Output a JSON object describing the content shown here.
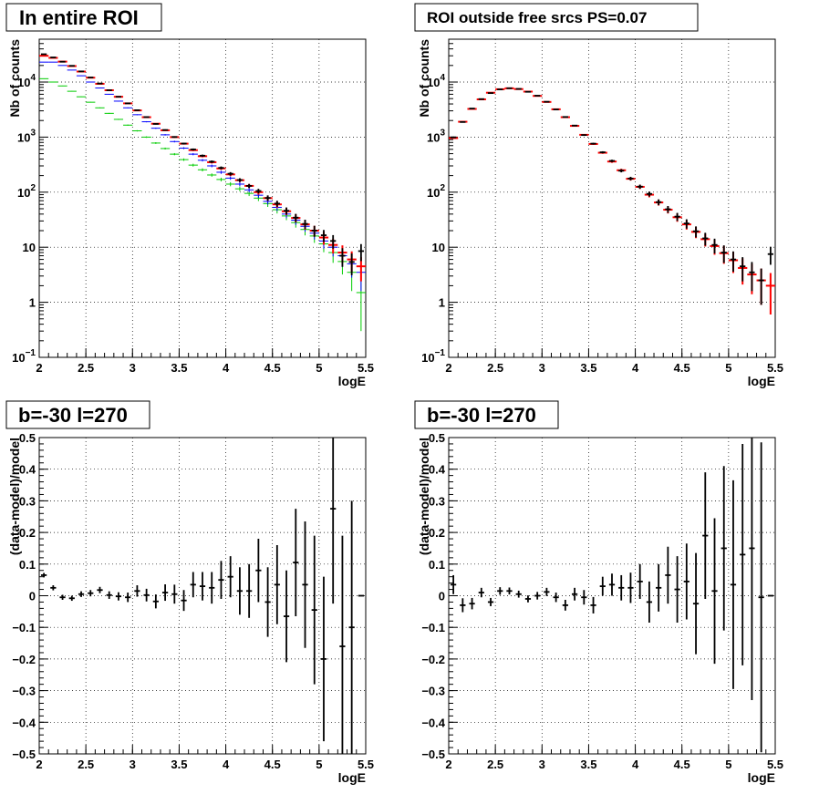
{
  "colors": {
    "data": "#000000",
    "total": "#ff0000",
    "blue": "#0000ff",
    "green": "#00cc00",
    "grid": "#000000"
  },
  "chart_data": [
    {
      "type": "scatter",
      "title": "In entire ROI",
      "xlabel": "logE",
      "ylabel": "Nb of counts",
      "xlim": [
        2,
        5.5
      ],
      "ylim": [
        0.1,
        60000
      ],
      "yscale": "log",
      "grid": true,
      "x_ticks": [
        "2",
        "2.5",
        "3",
        "3.5",
        "4",
        "4.5",
        "5",
        "5.5"
      ],
      "y_ticks": [
        {
          "v": 0.1,
          "base": "10",
          "exp": "−1"
        },
        {
          "v": 1,
          "base": "1",
          "exp": ""
        },
        {
          "v": 10,
          "base": "10",
          "exp": ""
        },
        {
          "v": 100,
          "base": "10",
          "exp": "2"
        },
        {
          "v": 1000,
          "base": "10",
          "exp": "3"
        },
        {
          "v": 10000,
          "base": "10",
          "exp": "4"
        }
      ],
      "x": [
        2.05,
        2.15,
        2.25,
        2.35,
        2.45,
        2.55,
        2.65,
        2.75,
        2.85,
        2.95,
        3.05,
        3.15,
        3.25,
        3.35,
        3.45,
        3.55,
        3.65,
        3.75,
        3.85,
        3.95,
        4.05,
        4.15,
        4.25,
        4.35,
        4.45,
        4.55,
        4.65,
        4.75,
        4.85,
        4.95,
        5.05,
        5.15,
        5.25,
        5.35,
        5.45
      ],
      "series": [
        {
          "color_key": "green",
          "style": "hist",
          "values": [
            11500,
            10000,
            8500,
            6800,
            5400,
            4300,
            3400,
            2700,
            2100,
            1650,
            1300,
            1000,
            780,
            620,
            490,
            390,
            310,
            255,
            205,
            170,
            140,
            115,
            95,
            78,
            62,
            48,
            37,
            28,
            21,
            16,
            11.5,
            8,
            5.5,
            3.5,
            1.5
          ],
          "errors": [
            107,
            100,
            92,
            82,
            73,
            66,
            58,
            52,
            46,
            41,
            36,
            32,
            28,
            25,
            22,
            20,
            18,
            16,
            14,
            13,
            12,
            11,
            10,
            9,
            8,
            7,
            6,
            5.3,
            4.6,
            4,
            3.4,
            2.8,
            2.3,
            1.9,
            1.2
          ]
        },
        {
          "color_key": "blue",
          "style": "hist",
          "values": [
            23000,
            23000,
            20000,
            16500,
            13000,
            10000,
            7800,
            6000,
            4500,
            3400,
            2550,
            1900,
            1450,
            1100,
            830,
            630,
            490,
            380,
            300,
            230,
            180,
            140,
            110,
            88,
            68,
            53,
            40,
            31,
            24,
            18,
            13,
            10,
            7,
            5,
            3.5
          ],
          "errors": [
            150,
            150,
            141,
            128,
            114,
            100,
            88,
            77,
            67,
            58,
            50,
            44,
            38,
            33,
            29,
            25,
            22,
            19,
            17,
            15,
            13,
            12,
            10.5,
            9.4,
            8.2,
            7.3,
            6.3,
            5.6,
            4.9,
            4.2,
            3.6,
            3.2,
            2.6,
            2.2,
            1.9
          ]
        },
        {
          "color_key": "total",
          "style": "hist",
          "values": [
            30000,
            27500,
            23500,
            19500,
            15500,
            12000,
            9300,
            7100,
            5400,
            4100,
            3050,
            2300,
            1750,
            1330,
            1000,
            760,
            580,
            450,
            350,
            270,
            210,
            165,
            130,
            100,
            78,
            60,
            45,
            34,
            26,
            20,
            15,
            11,
            8,
            6,
            4.5
          ],
          "errors": [
            170,
            166,
            153,
            140,
            124,
            110,
            96,
            84,
            73,
            64,
            55,
            48,
            42,
            36,
            32,
            28,
            24,
            21,
            19,
            16,
            14,
            13,
            11,
            10,
            8.8,
            7.7,
            6.7,
            5.8,
            5.1,
            4.5,
            3.9,
            3.3,
            2.8,
            2.4,
            2.1
          ]
        },
        {
          "color_key": "data",
          "style": "points",
          "values": [
            32000,
            28000,
            23400,
            19700,
            15600,
            12100,
            9400,
            7100,
            5400,
            4100,
            3080,
            2310,
            1735,
            1345,
            1005,
            763,
            597,
            460,
            358,
            276,
            216,
            166,
            130,
            105,
            78.5,
            62,
            46,
            34.5,
            26.5,
            20,
            16.5,
            13,
            7,
            5.4,
            8.5
          ],
          "errors": [
            179,
            167,
            153,
            140,
            125,
            110,
            97,
            84,
            73,
            64,
            55,
            48,
            42,
            37,
            32,
            28,
            24,
            21,
            19,
            17,
            15,
            13,
            11,
            10,
            8.9,
            7.9,
            6.8,
            5.9,
            5.1,
            4.5,
            4.1,
            3.6,
            2.6,
            2.3,
            2.9
          ]
        }
      ]
    },
    {
      "type": "scatter",
      "title": "ROI outside free srcs PS=0.07",
      "xlabel": "logE",
      "ylabel": "Nb of counts",
      "xlim": [
        2,
        5.5
      ],
      "ylim": [
        0.1,
        60000
      ],
      "yscale": "log",
      "grid": true,
      "x_ticks": [
        "2",
        "2.5",
        "3",
        "3.5",
        "4",
        "4.5",
        "5",
        "5.5"
      ],
      "y_ticks": [
        {
          "v": 0.1,
          "base": "10",
          "exp": "−1"
        },
        {
          "v": 1,
          "base": "1",
          "exp": ""
        },
        {
          "v": 10,
          "base": "10",
          "exp": ""
        },
        {
          "v": 100,
          "base": "10",
          "exp": "2"
        },
        {
          "v": 1000,
          "base": "10",
          "exp": "3"
        },
        {
          "v": 10000,
          "base": "10",
          "exp": "4"
        }
      ],
      "x": [
        2.05,
        2.15,
        2.25,
        2.35,
        2.45,
        2.55,
        2.65,
        2.75,
        2.85,
        2.95,
        3.05,
        3.15,
        3.25,
        3.35,
        3.45,
        3.55,
        3.65,
        3.75,
        3.85,
        3.95,
        4.05,
        4.15,
        4.25,
        4.35,
        4.45,
        4.55,
        4.65,
        4.75,
        4.85,
        4.95,
        5.05,
        5.15,
        5.25,
        5.35,
        5.45
      ],
      "series": [
        {
          "color_key": "total",
          "style": "hist",
          "values": [
            960,
            1900,
            3250,
            4850,
            6400,
            7400,
            7700,
            7450,
            6700,
            5600,
            4350,
            3200,
            2300,
            1600,
            1100,
            750,
            520,
            360,
            250,
            175,
            125,
            90,
            65,
            48,
            35,
            26,
            19,
            14,
            10.5,
            7.8,
            5.8,
            4.2,
            3.2,
            2.5,
            2
          ],
          "errors": [
            31,
            44,
            57,
            70,
            80,
            86,
            88,
            86,
            82,
            75,
            66,
            57,
            48,
            40,
            33,
            27,
            23,
            19,
            16,
            13,
            11,
            9.5,
            8,
            7,
            6,
            5.1,
            4.4,
            3.7,
            3.2,
            2.8,
            2.4,
            2.1,
            1.8,
            1.6,
            1.4
          ]
        },
        {
          "color_key": "data",
          "style": "points",
          "values": [
            990,
            1880,
            3300,
            4900,
            6300,
            7350,
            7720,
            7500,
            6650,
            5650,
            4380,
            3180,
            2320,
            1620,
            1090,
            760,
            530,
            370,
            245,
            177,
            126,
            93,
            66,
            49,
            36,
            27,
            19.5,
            14.5,
            11,
            8,
            6,
            4.5,
            3.5,
            2.5,
            7.5
          ],
          "errors": [
            31,
            43,
            57,
            70,
            79,
            86,
            88,
            87,
            82,
            75,
            66,
            56,
            48,
            40,
            33,
            28,
            23,
            19,
            16,
            13,
            11,
            9.6,
            8.1,
            7,
            6,
            5.2,
            4.4,
            3.8,
            3.3,
            2.8,
            2.4,
            2.1,
            1.9,
            1.6,
            2.7
          ]
        }
      ]
    },
    {
      "type": "scatter",
      "title": "b=-30 l=270",
      "xlabel": "logE",
      "ylabel": "(data-model)/model",
      "xlim": [
        2,
        5.5
      ],
      "ylim": [
        -0.5,
        0.5
      ],
      "yscale": "linear",
      "grid": true,
      "x_ticks": [
        "2",
        "2.5",
        "3",
        "3.5",
        "4",
        "4.5",
        "5",
        "5.5"
      ],
      "y_ticks": [
        {
          "v": -0.5,
          "label": "−0.5"
        },
        {
          "v": -0.4,
          "label": "−0.4"
        },
        {
          "v": -0.3,
          "label": "−0.3"
        },
        {
          "v": -0.2,
          "label": "−0.2"
        },
        {
          "v": -0.1,
          "label": "−0.1"
        },
        {
          "v": 0,
          "label": "0"
        },
        {
          "v": 0.1,
          "label": "0.1"
        },
        {
          "v": 0.2,
          "label": "0.2"
        },
        {
          "v": 0.3,
          "label": "0.3"
        },
        {
          "v": 0.4,
          "label": "0.4"
        },
        {
          "v": 0.5,
          "label": "0.5"
        }
      ],
      "x": [
        2.05,
        2.15,
        2.25,
        2.35,
        2.45,
        2.55,
        2.65,
        2.75,
        2.85,
        2.95,
        3.05,
        3.15,
        3.25,
        3.35,
        3.45,
        3.55,
        3.65,
        3.75,
        3.85,
        3.95,
        4.05,
        4.15,
        4.25,
        4.35,
        4.45,
        4.55,
        4.65,
        4.75,
        4.85,
        4.95,
        5.05,
        5.15,
        5.25,
        5.35,
        5.45
      ],
      "series": [
        {
          "color_key": "data",
          "style": "points",
          "values": [
            0.065,
            0.025,
            -0.005,
            -0.008,
            0.005,
            0.008,
            0.018,
            0.002,
            -0.002,
            -0.005,
            0.015,
            0.002,
            -0.018,
            0.01,
            0.005,
            -0.015,
            0.035,
            0.03,
            0.025,
            0.05,
            0.06,
            0.015,
            0.015,
            0.08,
            -0.02,
            0.035,
            -0.065,
            0.105,
            0.035,
            -0.045,
            -0.2,
            0.275,
            -0.16,
            -0.1,
            0.0
          ],
          "errors": [
            0.007,
            0.008,
            0.008,
            0.008,
            0.009,
            0.01,
            0.01,
            0.012,
            0.013,
            0.015,
            0.018,
            0.02,
            0.022,
            0.026,
            0.03,
            0.033,
            0.04,
            0.045,
            0.05,
            0.06,
            0.065,
            0.075,
            0.085,
            0.1,
            0.11,
            0.125,
            0.145,
            0.17,
            0.2,
            0.235,
            0.26,
            0.3,
            0.35,
            0.4,
            0.0
          ]
        }
      ]
    },
    {
      "type": "scatter",
      "title": "b=-30 l=270",
      "xlabel": "logE",
      "ylabel": "(data-model)/model",
      "xlim": [
        2,
        5.5
      ],
      "ylim": [
        -0.5,
        0.5
      ],
      "yscale": "linear",
      "grid": true,
      "x_ticks": [
        "2",
        "2.5",
        "3",
        "3.5",
        "4",
        "4.5",
        "5",
        "5.5"
      ],
      "y_ticks": [
        {
          "v": -0.5,
          "label": "−0.5"
        },
        {
          "v": -0.4,
          "label": "−0.4"
        },
        {
          "v": -0.3,
          "label": "−0.3"
        },
        {
          "v": -0.2,
          "label": "−0.2"
        },
        {
          "v": -0.1,
          "label": "−0.1"
        },
        {
          "v": 0,
          "label": "0"
        },
        {
          "v": 0.1,
          "label": "0.1"
        },
        {
          "v": 0.2,
          "label": "0.2"
        },
        {
          "v": 0.3,
          "label": "0.3"
        },
        {
          "v": 0.4,
          "label": "0.4"
        },
        {
          "v": 0.5,
          "label": "0.5"
        }
      ],
      "x": [
        2.05,
        2.15,
        2.25,
        2.35,
        2.45,
        2.55,
        2.65,
        2.75,
        2.85,
        2.95,
        3.05,
        3.15,
        3.25,
        3.35,
        3.45,
        3.55,
        3.65,
        3.75,
        3.85,
        3.95,
        4.05,
        4.15,
        4.25,
        4.35,
        4.45,
        4.55,
        4.65,
        4.75,
        4.85,
        4.95,
        5.05,
        5.15,
        5.25,
        5.35,
        5.45
      ],
      "series": [
        {
          "color_key": "data",
          "style": "points",
          "values": [
            0.035,
            -0.03,
            -0.025,
            0.01,
            -0.02,
            0.015,
            0.015,
            0.005,
            -0.01,
            0.0,
            0.012,
            -0.005,
            -0.03,
            0.005,
            -0.005,
            -0.03,
            0.03,
            0.035,
            0.025,
            0.025,
            0.045,
            -0.02,
            0.025,
            0.065,
            0.02,
            0.045,
            -0.025,
            0.19,
            0.015,
            0.15,
            0.035,
            0.13,
            0.15,
            -0.005,
            0.0
          ],
          "errors": [
            0.03,
            0.022,
            0.018,
            0.015,
            0.013,
            0.012,
            0.011,
            0.011,
            0.011,
            0.012,
            0.013,
            0.015,
            0.017,
            0.02,
            0.023,
            0.026,
            0.03,
            0.035,
            0.04,
            0.048,
            0.055,
            0.065,
            0.075,
            0.09,
            0.105,
            0.12,
            0.16,
            0.2,
            0.23,
            0.26,
            0.33,
            0.35,
            0.48,
            0.49,
            0.0
          ]
        }
      ]
    }
  ]
}
